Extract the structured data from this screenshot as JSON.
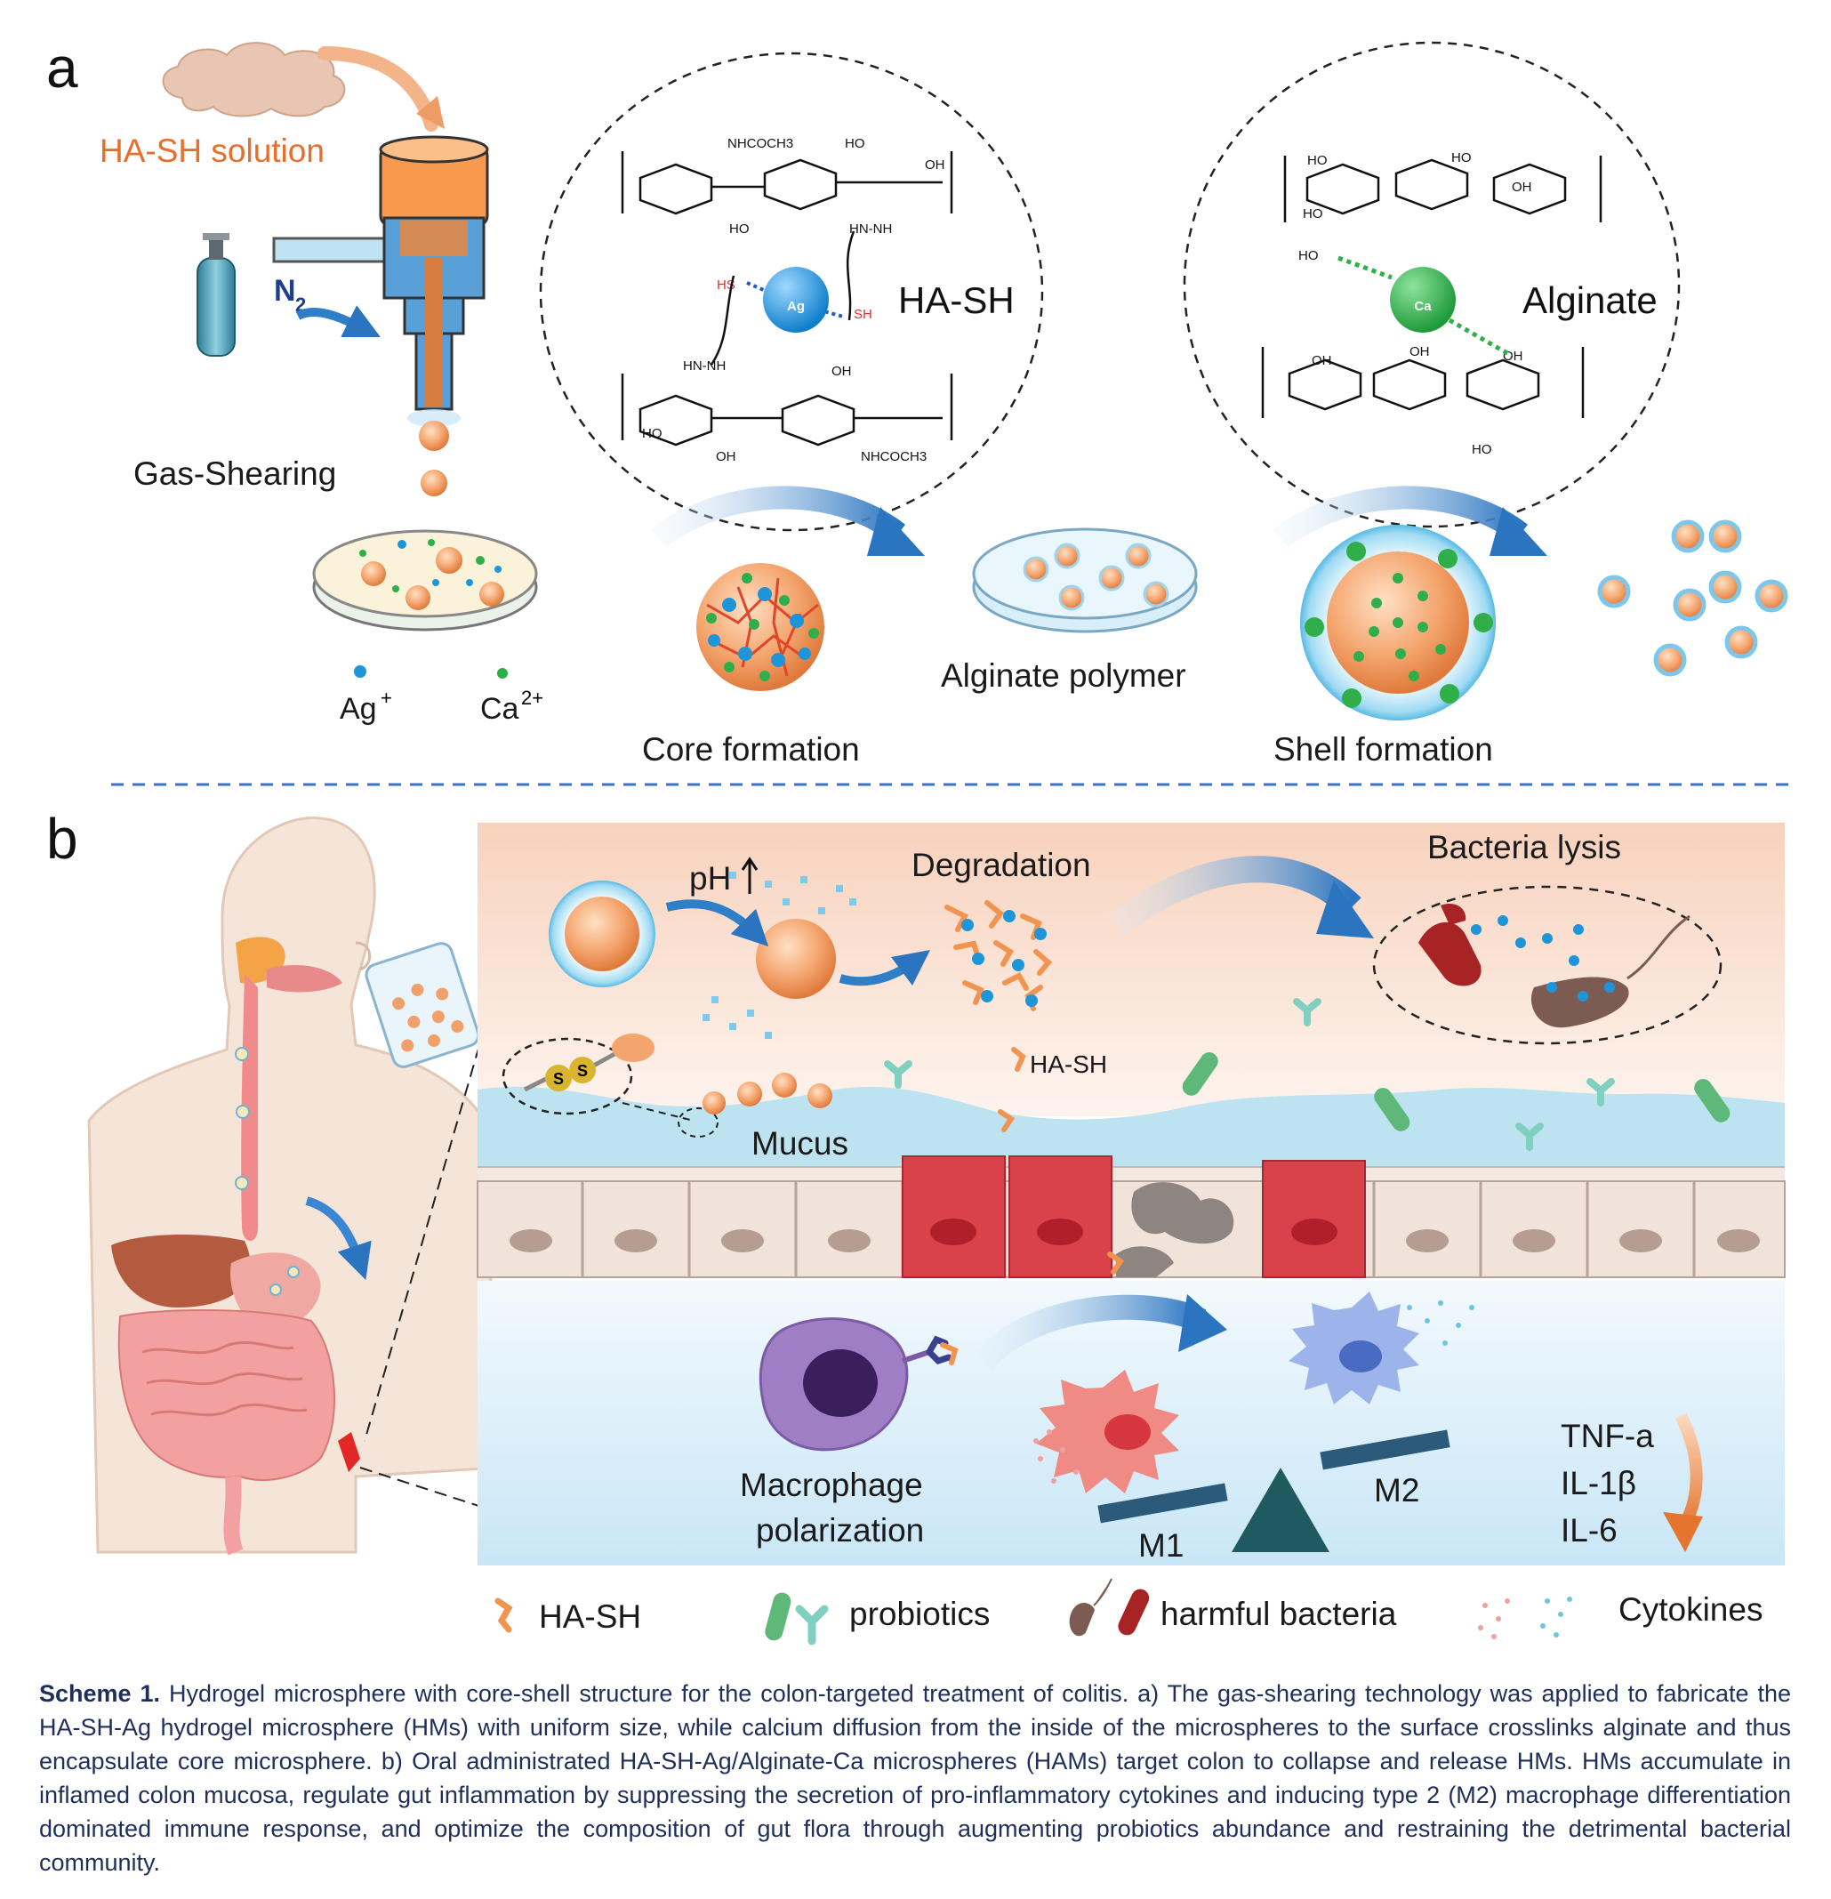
{
  "panel_a": {
    "letter": "a",
    "ha_sh_solution": "HA-SH solution",
    "n2_label": "N",
    "n2_subscript": "2",
    "gas_shearing": "Gas-Shearing",
    "ag_ion": "Ag",
    "ag_ion_charge": "+",
    "ca_ion": "Ca",
    "ca_ion_charge": "2+",
    "core_formation": "Core formation",
    "alginate_polymer": "Alginate polymer",
    "shell_formation": "Shell formation",
    "ha_sh_structure": {
      "ion": "Ag",
      "label": "HA-SH",
      "groups": [
        "NHCOCH3",
        "HO",
        "OH",
        "HO",
        "HN-NH",
        "HS",
        "SH",
        "HN-NH",
        "OH",
        "HO",
        "OH",
        "NHCOCH3"
      ]
    },
    "alginate_structure": {
      "ion": "Ca",
      "label": "Alginate",
      "groups": [
        "HO",
        "OH",
        "HO",
        "HO",
        "HO",
        "OH",
        "OH",
        "OH",
        "HO"
      ]
    }
  },
  "panel_b": {
    "letter": "b",
    "ph_label": "pH",
    "degradation": "Degradation",
    "bacteria_lysis": "Bacteria lysis",
    "ha_sh_tag": "HA-SH",
    "disulfide_s": "S",
    "mucus": "Mucus",
    "macrophage_line1": "Macrophage",
    "macrophage_line2": "polarization",
    "m1": "M1",
    "m2": "M2",
    "cytokines_list": [
      "TNF-a",
      "IL-1β",
      "IL-6"
    ]
  },
  "legend": {
    "ha_sh": "HA-SH",
    "probiotics": "probiotics",
    "harmful_bacteria": "harmful bacteria",
    "cytokines": "Cytokines"
  },
  "caption": {
    "lead": "Scheme 1.",
    "text": "Hydrogel microsphere with core-shell structure for the colon-targeted treatment of colitis. a) The gas-shearing technology was applied to fabricate the HA-SH-Ag hydrogel microsphere (HMs) with uniform size, while calcium diffusion from the inside of the microspheres to the surface crosslinks alginate and thus encapsulate core microsphere. b) Oral administrated HA-SH-Ag/Alginate-Ca microspheres (HAMs) target colon to collapse and release HMs. HMs accumulate in inflamed colon mucosa, regulate gut inflammation by suppressing the secretion of pro-inflammatory cytokines and inducing type 2 (M2) macrophage differentiation dominated immune response, and optimize the composition of gut flora through augmenting probiotics abundance and restraining the detrimental bacterial community."
  },
  "colors": {
    "orange": "#f0934f",
    "ag_blue": "#1e95d8",
    "ca_green": "#2fae4a",
    "arrow_blue": "#2f7fc8",
    "red_cell": "#d9414b",
    "caption_text": "#1f2f5a"
  }
}
